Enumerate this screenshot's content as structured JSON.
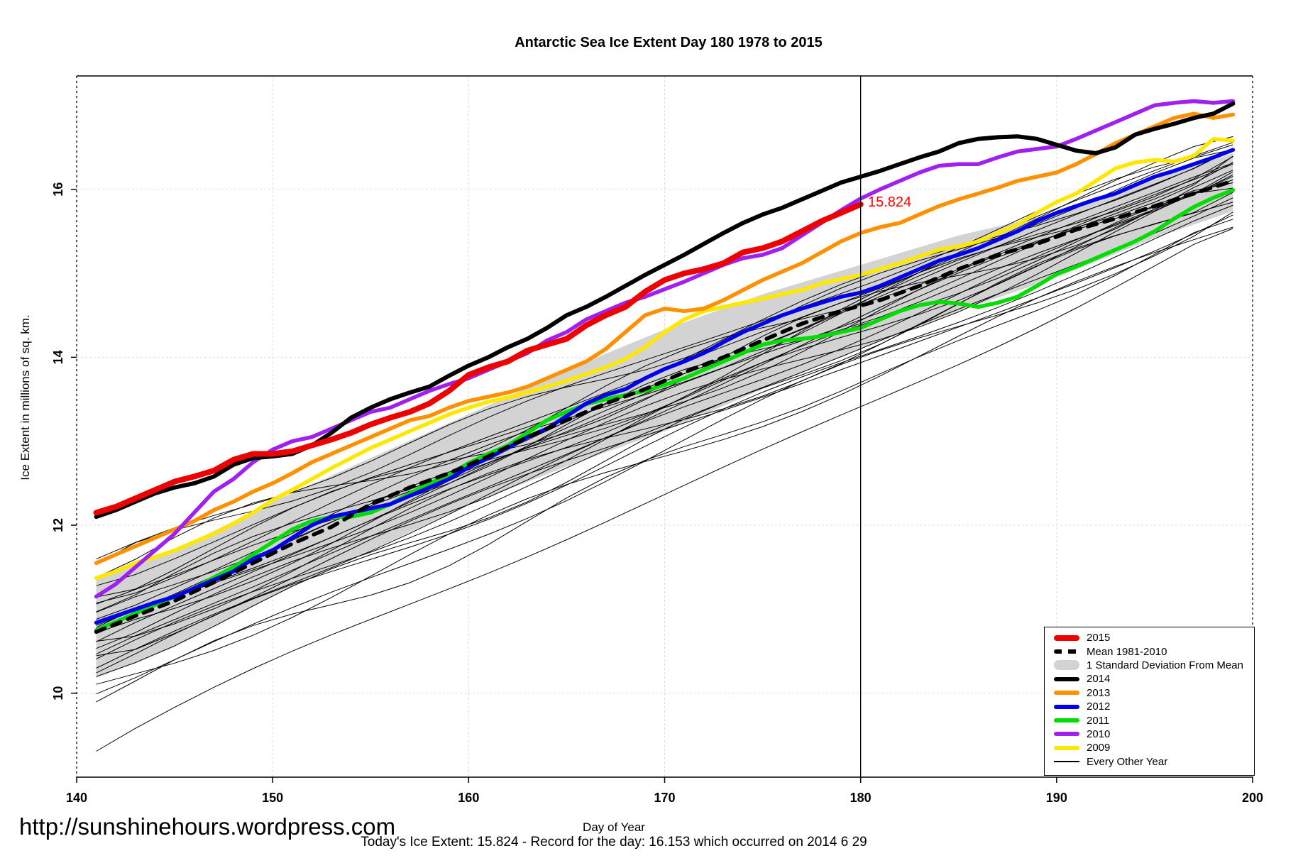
{
  "title": "Antarctic Sea Ice Extent Day 180 1978 to 2015",
  "y_axis": {
    "label": "Ice Extent in millions of sq. km.",
    "ticks": [
      10,
      12,
      14,
      16
    ]
  },
  "x_axis": {
    "label": "Day of Year",
    "ticks": [
      140,
      150,
      160,
      170,
      180,
      190,
      200
    ]
  },
  "annotation": {
    "text": "15.824",
    "color": "#FF0000",
    "day": 180,
    "value": 15.824
  },
  "footer": {
    "url": "http://sunshinehours.wordpress.com",
    "caption": "Today's Ice Extent: 15.824  - Record for the day: 16.153 which occurred on 2014 6 29"
  },
  "legend": {
    "items": [
      {
        "label": "2015",
        "style": "thick-line",
        "color": "#EE0000"
      },
      {
        "label": "Mean 1981-2010",
        "style": "dashed-line",
        "color": "#000000"
      },
      {
        "label": "1 Standard Deviation From Mean",
        "style": "band",
        "color": "#D3D3D3"
      },
      {
        "label": "2014",
        "style": "line",
        "color": "#000000"
      },
      {
        "label": "2013",
        "style": "line",
        "color": "#FF9100"
      },
      {
        "label": "2012",
        "style": "line",
        "color": "#0000EE"
      },
      {
        "label": "2011",
        "style": "line",
        "color": "#00DD00"
      },
      {
        "label": "2010",
        "style": "line",
        "color": "#A020F0"
      },
      {
        "label": "2009",
        "style": "line",
        "color": "#FFE800"
      },
      {
        "label": "Every Other Year",
        "style": "thin-line",
        "color": "#000000"
      }
    ]
  },
  "chart_data": {
    "type": "line",
    "title": "Antarctic Sea Ice Extent Day 180 1978 to 2015",
    "xlabel": "Day of Year",
    "ylabel": "Ice Extent in millions of sq. km.",
    "xlim": [
      140,
      200
    ],
    "ylim": [
      9.0,
      17.35
    ],
    "grid": "dotted",
    "legend_position": "bottom-right",
    "marker_line_day": 180,
    "days_start": 141,
    "day_step": 1,
    "series": [
      {
        "name": "2015",
        "color": "#EE0000",
        "width": 8,
        "values": [
          12.15,
          12.22,
          12.32,
          12.42,
          12.52,
          12.58,
          12.65,
          12.78,
          12.85,
          12.85,
          12.88,
          12.95,
          13.02,
          13.1,
          13.2,
          13.28,
          13.35,
          13.45,
          13.6,
          13.79,
          13.88,
          13.95,
          14.08,
          14.15,
          14.22,
          14.38,
          14.5,
          14.6,
          14.78,
          14.92,
          15.0,
          15.05,
          15.12,
          15.25,
          15.3,
          15.38,
          15.5,
          15.62,
          15.72,
          15.82
        ]
      },
      {
        "name": "2014",
        "color": "#000000",
        "width": 6,
        "values": [
          12.1,
          12.18,
          12.28,
          12.38,
          12.45,
          12.5,
          12.58,
          12.72,
          12.8,
          12.82,
          12.85,
          12.95,
          13.1,
          13.28,
          13.4,
          13.5,
          13.58,
          13.65,
          13.78,
          13.9,
          14.0,
          14.12,
          14.22,
          14.35,
          14.5,
          14.6,
          14.72,
          14.85,
          14.98,
          15.1,
          15.22,
          15.35,
          15.48,
          15.6,
          15.7,
          15.78,
          15.88,
          15.98,
          16.08,
          16.15,
          16.22,
          16.3,
          16.38,
          16.45,
          16.55,
          16.6,
          16.62,
          16.63,
          16.6,
          16.53,
          16.46,
          16.43,
          16.5,
          16.65,
          16.72,
          16.78,
          16.85,
          16.9,
          17.02
        ]
      },
      {
        "name": "2013",
        "color": "#FF9100",
        "width": 5.5,
        "values": [
          11.55,
          11.65,
          11.75,
          11.85,
          11.95,
          12.05,
          12.18,
          12.28,
          12.4,
          12.5,
          12.62,
          12.75,
          12.85,
          12.95,
          13.05,
          13.15,
          13.25,
          13.3,
          13.4,
          13.48,
          13.53,
          13.58,
          13.65,
          13.75,
          13.85,
          13.95,
          14.1,
          14.3,
          14.5,
          14.58,
          14.55,
          14.58,
          14.68,
          14.8,
          14.92,
          15.02,
          15.12,
          15.25,
          15.38,
          15.48,
          15.55,
          15.6,
          15.7,
          15.8,
          15.88,
          15.95,
          16.02,
          16.1,
          16.15,
          16.2,
          16.3,
          16.42,
          16.55,
          16.65,
          16.75,
          16.85,
          16.9,
          16.85,
          16.89
        ]
      },
      {
        "name": "2012",
        "color": "#0000EE",
        "width": 5.5,
        "values": [
          10.84,
          10.92,
          11.0,
          11.08,
          11.15,
          11.25,
          11.35,
          11.45,
          11.6,
          11.7,
          11.85,
          12.0,
          12.1,
          12.15,
          12.2,
          12.25,
          12.35,
          12.45,
          12.55,
          12.69,
          12.8,
          12.92,
          13.05,
          13.15,
          13.3,
          13.45,
          13.55,
          13.62,
          13.75,
          13.86,
          13.95,
          14.05,
          14.18,
          14.3,
          14.4,
          14.5,
          14.58,
          14.65,
          14.72,
          14.77,
          14.85,
          14.95,
          15.05,
          15.15,
          15.22,
          15.3,
          15.4,
          15.5,
          15.62,
          15.72,
          15.8,
          15.88,
          15.95,
          16.05,
          16.15,
          16.22,
          16.3,
          16.38,
          16.47
        ]
      },
      {
        "name": "2011",
        "color": "#00DD00",
        "width": 5.5,
        "values": [
          10.75,
          10.85,
          10.95,
          11.05,
          11.15,
          11.25,
          11.38,
          11.5,
          11.65,
          11.8,
          11.95,
          12.05,
          12.1,
          12.1,
          12.15,
          12.25,
          12.38,
          12.5,
          12.6,
          12.74,
          12.85,
          12.95,
          13.1,
          13.25,
          13.35,
          13.44,
          13.5,
          13.55,
          13.6,
          13.67,
          13.75,
          13.85,
          13.95,
          14.05,
          14.15,
          14.2,
          14.22,
          14.25,
          14.3,
          14.35,
          14.45,
          14.55,
          14.62,
          14.66,
          14.64,
          14.6,
          14.65,
          14.72,
          14.85,
          14.99,
          15.08,
          15.18,
          15.28,
          15.38,
          15.5,
          15.65,
          15.79,
          15.9,
          15.99
        ]
      },
      {
        "name": "2010",
        "color": "#A020F0",
        "width": 5.5,
        "values": [
          11.15,
          11.3,
          11.5,
          11.7,
          11.9,
          12.15,
          12.4,
          12.55,
          12.75,
          12.9,
          13.0,
          13.05,
          13.15,
          13.25,
          13.35,
          13.4,
          13.5,
          13.6,
          13.68,
          13.75,
          13.85,
          13.95,
          14.05,
          14.2,
          14.3,
          14.45,
          14.55,
          14.65,
          14.72,
          14.81,
          14.9,
          15.0,
          15.1,
          15.18,
          15.22,
          15.3,
          15.45,
          15.6,
          15.75,
          15.89,
          16.0,
          16.1,
          16.2,
          16.28,
          16.3,
          16.3,
          16.38,
          16.45,
          16.48,
          16.51,
          16.6,
          16.7,
          16.8,
          16.9,
          17.0,
          17.03,
          17.05,
          17.03,
          17.05
        ]
      },
      {
        "name": "2009",
        "color": "#FFE800",
        "width": 5.5,
        "values": [
          11.37,
          11.45,
          11.55,
          11.62,
          11.7,
          11.8,
          11.9,
          12.02,
          12.15,
          12.3,
          12.42,
          12.55,
          12.68,
          12.8,
          12.92,
          13.02,
          13.12,
          13.22,
          13.32,
          13.4,
          13.47,
          13.52,
          13.58,
          13.65,
          13.72,
          13.8,
          13.88,
          13.98,
          14.12,
          14.3,
          14.45,
          14.55,
          14.6,
          14.65,
          14.7,
          14.75,
          14.8,
          14.88,
          14.93,
          14.98,
          15.05,
          15.12,
          15.2,
          15.28,
          15.32,
          15.38,
          15.48,
          15.58,
          15.72,
          15.85,
          15.95,
          16.1,
          16.25,
          16.32,
          16.35,
          16.33,
          16.4,
          16.6,
          16.58
        ]
      }
    ],
    "mean_series": {
      "name": "Mean 1981-2010",
      "color": "#000000",
      "width": 5.5,
      "dash": [
        13,
        11
      ],
      "days_start": 141,
      "day_step": 2,
      "values": [
        10.73,
        10.92,
        11.1,
        11.32,
        11.55,
        11.78,
        11.98,
        12.25,
        12.45,
        12.62,
        12.82,
        13.05,
        13.25,
        13.45,
        13.62,
        13.82,
        14.0,
        14.2,
        14.4,
        14.55,
        14.68,
        14.85,
        15.05,
        15.22,
        15.35,
        15.52,
        15.65,
        15.8,
        15.95,
        16.1
      ]
    },
    "std_band": {
      "name": "1 Standard Deviation From Mean",
      "color": "#D3D3D3",
      "days": [
        141,
        145,
        150,
        155,
        160,
        165,
        170,
        175,
        180,
        185,
        190,
        195,
        199
      ],
      "top": [
        11.35,
        11.7,
        12.28,
        12.8,
        13.32,
        13.85,
        14.33,
        14.75,
        15.1,
        15.45,
        15.72,
        16.12,
        16.43
      ],
      "bottom": [
        10.18,
        10.55,
        11.15,
        11.7,
        12.24,
        12.7,
        13.12,
        13.62,
        14.11,
        14.55,
        14.95,
        15.42,
        15.74
      ]
    },
    "background_years": {
      "name": "Every Other Year",
      "color": "#000000",
      "width": 1,
      "start_end_pairs": [
        [
          9.3,
          15.5
        ],
        [
          9.9,
          15.6
        ],
        [
          10.0,
          15.75
        ],
        [
          10.1,
          15.55
        ],
        [
          10.2,
          16.0
        ],
        [
          10.25,
          15.8
        ],
        [
          10.3,
          16.2
        ],
        [
          10.4,
          15.9
        ],
        [
          10.45,
          16.35
        ],
        [
          10.5,
          15.7
        ],
        [
          10.55,
          16.1
        ],
        [
          10.6,
          16.45
        ],
        [
          10.65,
          15.85
        ],
        [
          10.7,
          16.25
        ],
        [
          10.75,
          16.5
        ],
        [
          10.8,
          15.95
        ],
        [
          10.85,
          16.3
        ],
        [
          10.9,
          16.55
        ],
        [
          10.95,
          16.05
        ],
        [
          11.0,
          16.4
        ],
        [
          11.05,
          16.15
        ],
        [
          11.1,
          16.6
        ],
        [
          11.2,
          16.2
        ],
        [
          11.3,
          16.5
        ],
        [
          11.4,
          16.3
        ],
        [
          11.5,
          16.55
        ],
        [
          11.6,
          16.45
        ]
      ]
    },
    "colors": {
      "grid": "#DCDCDC",
      "band": "#D3D3D3",
      "marker_line": "#000000",
      "border": "#000000"
    }
  }
}
